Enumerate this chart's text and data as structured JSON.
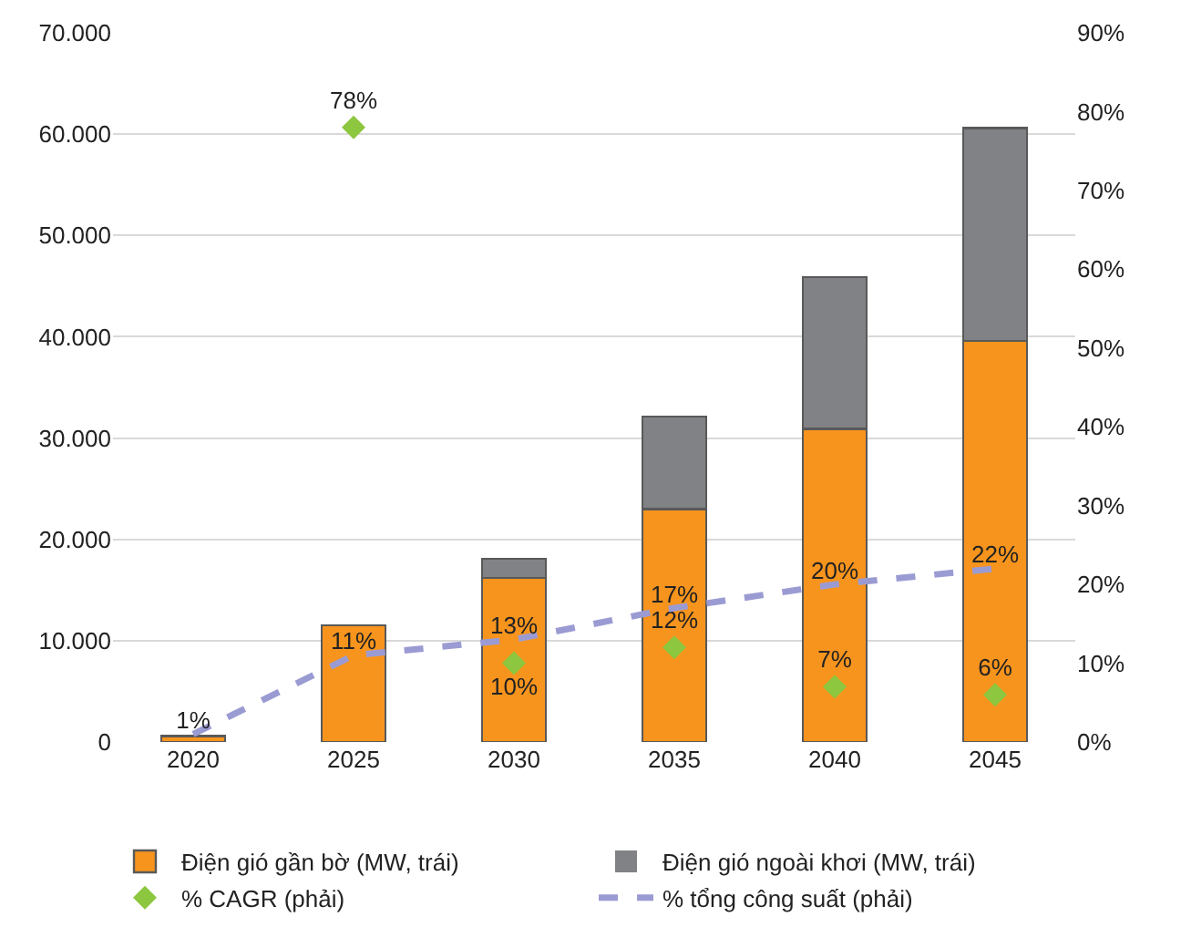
{
  "chart_data": {
    "type": "bar",
    "stacked": true,
    "categories": [
      "2020",
      "2025",
      "2030",
      "2035",
      "2040",
      "2045"
    ],
    "series": [
      {
        "name": "Điện gió gần bờ (MW, trái)",
        "color": "#f7941d",
        "values": [
          600,
          11500,
          16200,
          23000,
          30900,
          39600
        ]
      },
      {
        "name": "Điện gió ngoài khơi (MW, trái)",
        "color": "#808285",
        "values": [
          0,
          0,
          1900,
          9100,
          15000,
          21000
        ]
      },
      {
        "name": "% CAGR (phải)",
        "type": "scatter",
        "axis": "y2",
        "marker": "diamond",
        "color": "#8dc63f",
        "values": [
          null,
          78,
          10,
          12,
          7,
          6
        ],
        "value_labels": [
          null,
          "78%",
          "10%",
          "12%",
          "7%",
          "6%"
        ]
      },
      {
        "name": "% tổng công suất (phải)",
        "type": "line",
        "axis": "y2",
        "line_style": "dashed",
        "marker": "none",
        "color": "#9b9bd3",
        "values": [
          1,
          11,
          13,
          17,
          20,
          22
        ],
        "value_labels": [
          "1%",
          "11%",
          "13%",
          "17%",
          "20%",
          "22%"
        ]
      }
    ],
    "ylim": [
      0,
      70000
    ],
    "yticks": [
      {
        "value": 0,
        "label": "0"
      },
      {
        "value": 10000,
        "label": "10.000"
      },
      {
        "value": 20000,
        "label": "20.000"
      },
      {
        "value": 30000,
        "label": "30.000"
      },
      {
        "value": 40000,
        "label": "40.000"
      },
      {
        "value": 50000,
        "label": "50.000"
      },
      {
        "value": 60000,
        "label": "60.000"
      },
      {
        "value": 70000,
        "label": "70.000"
      }
    ],
    "y2lim": [
      0,
      90
    ],
    "y2ticks": [
      {
        "value": 0,
        "label": "0%"
      },
      {
        "value": 10,
        "label": "10%"
      },
      {
        "value": 20,
        "label": "20%"
      },
      {
        "value": 30,
        "label": "30%"
      },
      {
        "value": 40,
        "label": "40%"
      },
      {
        "value": 50,
        "label": "50%"
      },
      {
        "value": 60,
        "label": "60%"
      },
      {
        "value": 70,
        "label": "70%"
      },
      {
        "value": 80,
        "label": "80%"
      },
      {
        "value": 90,
        "label": "90%"
      }
    ],
    "grid": "y",
    "legend": "bottom"
  }
}
